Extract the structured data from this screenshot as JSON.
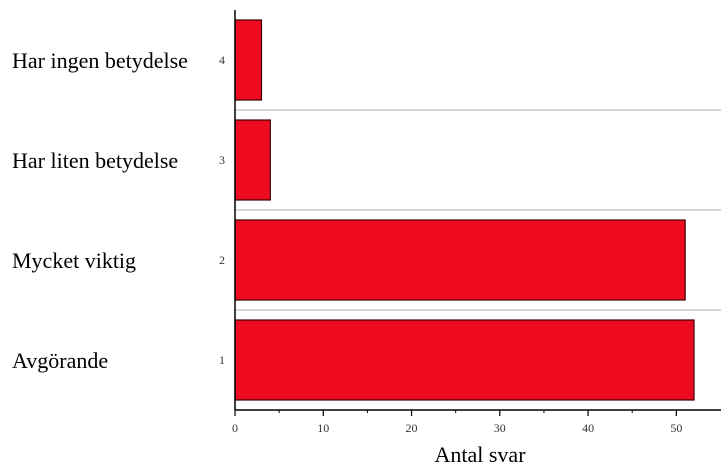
{
  "chart_data": {
    "type": "bar",
    "orientation": "horizontal",
    "categories": [
      "1",
      "2",
      "3",
      "4"
    ],
    "category_labels": [
      "Avgörande",
      "Mycket viktig",
      "Har liten betydelse",
      "Har ingen betydelse"
    ],
    "values": [
      52,
      51,
      4,
      3
    ],
    "xlabel": "Antal svar",
    "ylabel": "",
    "title": "",
    "xlim": [
      0,
      52.5
    ],
    "xticks": [
      0,
      10,
      20,
      30,
      40,
      50
    ],
    "grid": "horizontal separators",
    "legend": "none",
    "colors": {
      "bar_fill": "#ee0a1f",
      "bar_stroke": "#3a0000",
      "grid": "#c8c8c8",
      "axis": "#000000"
    }
  }
}
